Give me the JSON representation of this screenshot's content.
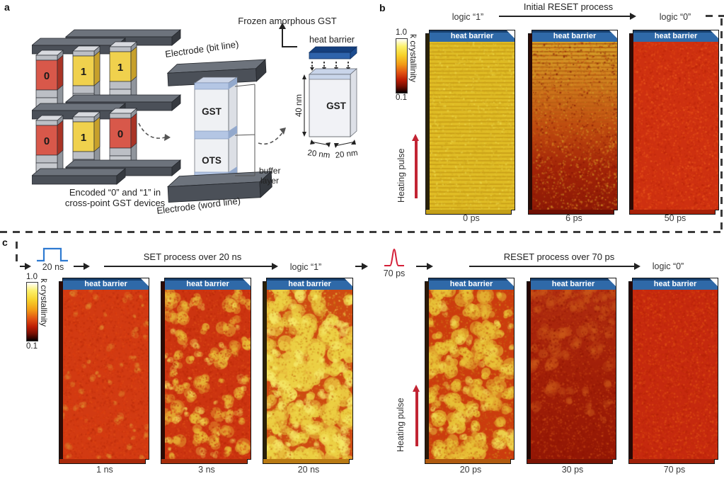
{
  "figure": {
    "panel_a": {
      "label": "a",
      "cells": [
        "0",
        "1",
        "1",
        "0",
        "1",
        "0"
      ],
      "caption_line1": "Encoded “0” and “1” in",
      "caption_line2": "cross-point GST devices",
      "electrode_top": "Electrode (bit line)",
      "electrode_bottom": "Electrode (word line)",
      "gst": "GST",
      "ots": "OTS",
      "buffer_line1": "buffer",
      "buffer_line2": "layer",
      "frozen_title": "Frozen amorphous GST",
      "heat_barrier": "heat barrier",
      "mini_gst": "GST",
      "dim_height": "40 nm",
      "dim_width_left": "20 nm",
      "dim_width_right": "20 nm"
    },
    "panel_b": {
      "label": "b",
      "title": "Initial RESET process",
      "logic_start": "logic “1”",
      "logic_end": "logic “0”",
      "heat_barrier": "heat barrier",
      "heating_pulse": "Heating pulse",
      "colorbar": {
        "max": "1.0",
        "min": "0.1",
        "label": "k̄ crystallinity"
      },
      "frames": [
        {
          "time": "0 ps"
        },
        {
          "time": "6 ps"
        },
        {
          "time": "50 ps"
        }
      ]
    },
    "panel_c": {
      "label": "c",
      "set_pulse_label": "20 ns",
      "set_title": "SET process over 20 ns",
      "logic_one": "logic “1”",
      "reset_pulse_label": "70 ps",
      "reset_title": "RESET process over 70 ps",
      "logic_zero": "logic “0”",
      "heat_barrier": "heat barrier",
      "heating_pulse": "Heating pulse",
      "colorbar": {
        "max": "1.0",
        "min": "0.1",
        "label": "k̄ crystallinity"
      },
      "set_frames": [
        {
          "time": "1 ns"
        },
        {
          "time": "3 ns"
        },
        {
          "time": "20 ns"
        }
      ],
      "reset_frames": [
        {
          "time": "20 ps"
        },
        {
          "time": "30 ps"
        },
        {
          "time": "70 ps"
        }
      ]
    },
    "colors": {
      "heat_barrier_blue": "#2f69a8",
      "electrode_gray": "#4b5058",
      "logic0_cell_red": "#d8584a",
      "logic1_cell_yellow": "#f0d14d",
      "set_pulse_blue": "#2e7ad1",
      "reset_pulse_red": "#d41f38",
      "heating_arrow_red": "#c22433"
    },
    "textures": {
      "b0": {
        "seed": 11,
        "base": "#e0bd25",
        "stripe": "#b8860e",
        "noise": [
          "#cda41c",
          "#eedb4e",
          "#d9b62a"
        ],
        "noiseDensity": 0.35,
        "edgeL": "#2b230a",
        "edgeB": "#c5a018"
      },
      "b6": {
        "seed": 22,
        "grad": [
          "#d8a42a",
          "#cf7c1e",
          "#c04c10",
          "#a32408",
          "#8e1a06"
        ],
        "stripe": "#a8540e",
        "stripeFrac": 0.55,
        "stripeFade": true,
        "noise": [
          "#c25014",
          "#de8020",
          "#7e1004",
          "#d4a428"
        ],
        "noiseDensity": 0.45,
        "edgeL": "#2a0a04",
        "edgeB": "#701004"
      },
      "b50": {
        "seed": 33,
        "base": "#ce3010",
        "noise": [
          "#e14b16",
          "#b72108",
          "#dd3d12",
          "#ef6020"
        ],
        "noiseDensity": 0.6,
        "edgeL": "#2e0a04",
        "edgeB": "#a82108"
      },
      "c1": {
        "seed": 44,
        "base": "#d23a12",
        "blobs": [
          {
            "color": "#e09030",
            "count": 60,
            "rmin": 2,
            "rmax": 5,
            "alpha": 0.4
          }
        ],
        "noise": [
          "#e04c16",
          "#b92a0a",
          "#dd3d10"
        ],
        "noiseDensity": 0.55,
        "edgeL": "#2e0a04",
        "edgeB": "#a8290a"
      },
      "c3": {
        "seed": 55,
        "base": "#cc3410",
        "blobs": [
          {
            "color": "#e8bc38",
            "count": 75,
            "rmin": 4,
            "rmax": 10,
            "alpha": 0.55
          },
          {
            "color": "#f2da5a",
            "count": 40,
            "rmin": 2,
            "rmax": 6,
            "alpha": 0.45
          }
        ],
        "noise": [
          "#de5018",
          "#b72808"
        ],
        "noiseDensity": 0.45,
        "edgeL": "#2e0a04",
        "edgeB": "#a62c0a"
      },
      "c20n": {
        "seed": 66,
        "base": "#cf4a12",
        "blobs": [
          {
            "color": "#ecd044",
            "count": 120,
            "rmin": 6,
            "rmax": 13,
            "alpha": 0.8
          },
          {
            "color": "#f6ea6a",
            "count": 70,
            "rmin": 3,
            "rmax": 8,
            "alpha": 0.55
          }
        ],
        "noise": [
          "#d89a20",
          "#c3640f",
          "#f0dc55"
        ],
        "noiseDensity": 0.4,
        "edgeL": "#2b2008",
        "edgeB": "#b97a12"
      },
      "c20p": {
        "seed": 77,
        "base": "#cc3c0e",
        "blobs": [
          {
            "color": "#e8c238",
            "count": 100,
            "rmin": 5,
            "rmax": 12,
            "alpha": 0.75
          },
          {
            "color": "#f0d855",
            "count": 50,
            "rmin": 3,
            "rmax": 7,
            "alpha": 0.5
          }
        ],
        "noise": [
          "#d88a1c",
          "#c45410"
        ],
        "noiseDensity": 0.45,
        "edgeL": "#2b1808",
        "edgeB": "#b05a0e"
      },
      "c30": {
        "seed": 88,
        "grad": [
          "#b02c10",
          "#a21f08",
          "#941705"
        ],
        "blobs": [
          {
            "color": "#cc5a1a",
            "count": 70,
            "rmin": 4,
            "rmax": 9,
            "alpha": 0.35,
            "top": true
          }
        ],
        "noise": [
          "#bc3a10",
          "#8e1404",
          "#c94f16"
        ],
        "noiseDensity": 0.5,
        "edgeL": "#240604",
        "edgeB": "#7c1404"
      },
      "c70": {
        "seed": 99,
        "base": "#c6290e",
        "noise": [
          "#d8430f",
          "#b32107",
          "#e25517"
        ],
        "noiseDensity": 0.6,
        "edgeL": "#280804",
        "edgeB": "#9e1f08"
      }
    }
  }
}
